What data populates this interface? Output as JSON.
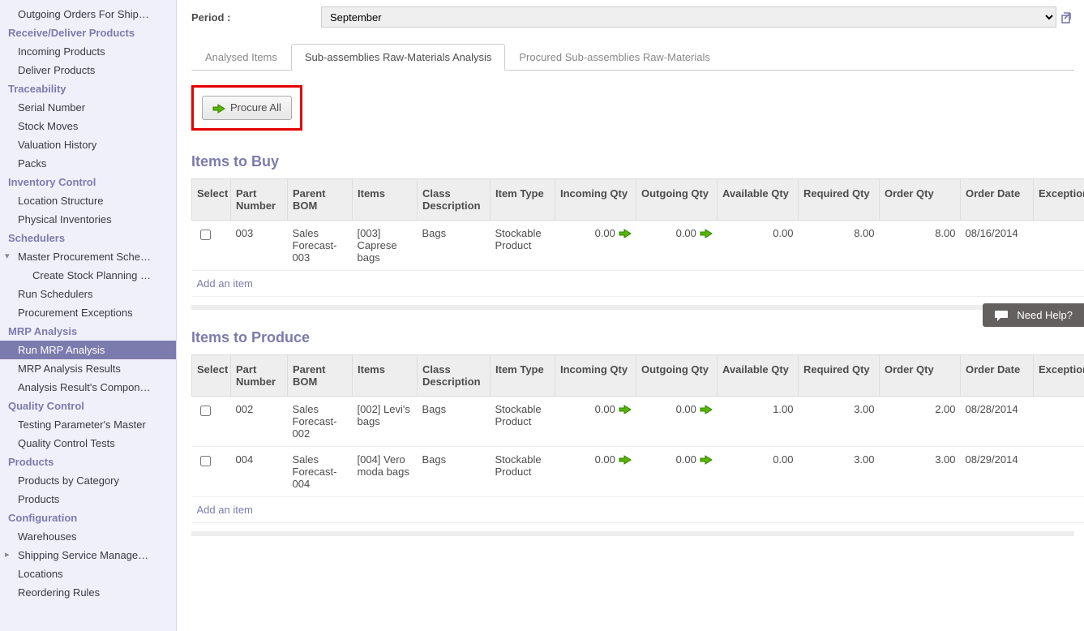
{
  "colors": {
    "accent": "#7c7bad",
    "highlight_border": "#e30000",
    "sidebar_bg": "#f0f0fa",
    "help_bg": "#646060",
    "arrow_fill": "#5ab700",
    "arrow_stroke": "#2e7d00"
  },
  "sidebar": {
    "items": [
      {
        "label": "Outgoing Orders For Ship…",
        "type": "item"
      },
      {
        "label": "Receive/Deliver Products",
        "type": "header"
      },
      {
        "label": "Incoming Products",
        "type": "item"
      },
      {
        "label": "Deliver Products",
        "type": "item"
      },
      {
        "label": "Traceability",
        "type": "header"
      },
      {
        "label": "Serial Number",
        "type": "item"
      },
      {
        "label": "Stock Moves",
        "type": "item"
      },
      {
        "label": "Valuation History",
        "type": "item"
      },
      {
        "label": "Packs",
        "type": "item"
      },
      {
        "label": "Inventory Control",
        "type": "header"
      },
      {
        "label": "Location Structure",
        "type": "item"
      },
      {
        "label": "Physical Inventories",
        "type": "item"
      },
      {
        "label": "Schedulers",
        "type": "header"
      },
      {
        "label": "Master Procurement Sche…",
        "type": "item",
        "expander": "collapsed"
      },
      {
        "label": "Create Stock Planning …",
        "type": "item",
        "indent": true
      },
      {
        "label": "Run Schedulers",
        "type": "item"
      },
      {
        "label": "Procurement Exceptions",
        "type": "item"
      },
      {
        "label": "MRP Analysis",
        "type": "header"
      },
      {
        "label": "Run MRP Analysis",
        "type": "item",
        "active": true
      },
      {
        "label": "MRP Analysis Results",
        "type": "item"
      },
      {
        "label": "Analysis Result's Compon…",
        "type": "item"
      },
      {
        "label": "Quality Control",
        "type": "header"
      },
      {
        "label": "Testing Parameter's Master",
        "type": "item"
      },
      {
        "label": "Quality Control Tests",
        "type": "item"
      },
      {
        "label": "Products",
        "type": "header"
      },
      {
        "label": "Products by Category",
        "type": "item"
      },
      {
        "label": "Products",
        "type": "item"
      },
      {
        "label": "Configuration",
        "type": "header"
      },
      {
        "label": "Warehouses",
        "type": "item"
      },
      {
        "label": "Shipping Service Manage…",
        "type": "item",
        "expander": "expandable"
      },
      {
        "label": "Locations",
        "type": "item"
      },
      {
        "label": "Reordering Rules",
        "type": "item"
      }
    ]
  },
  "form": {
    "period_label": "Period :",
    "period_value": "September"
  },
  "tabs": {
    "items": [
      {
        "label": "Analysed Items",
        "active": false
      },
      {
        "label": "Sub-assemblies Raw-Materials Analysis",
        "active": true
      },
      {
        "label": "Procured Sub-assemblies Raw-Materials",
        "active": false
      }
    ]
  },
  "actions": {
    "procure_all": "Procure All"
  },
  "help": {
    "label": "Need Help?"
  },
  "sections": [
    {
      "title": "Items to Buy",
      "columns": [
        "Select",
        "Part Number",
        "Parent BOM",
        "Items",
        "Class Description",
        "Item Type",
        "Incoming Qty",
        "Outgoing Qty",
        "Available Qty",
        "Required Qty",
        "Order Qty",
        "Order Date",
        "Exception"
      ],
      "rows": [
        {
          "part_number": "003",
          "parent_bom": "Sales Forecast-003",
          "items": "[003] Caprese bags",
          "class_desc": "Bags",
          "item_type": "Stockable Product",
          "incoming_qty": "0.00",
          "outgoing_qty": "0.00",
          "available_qty": "0.00",
          "required_qty": "8.00",
          "order_qty": "8.00",
          "order_date": "08/16/2014",
          "exception": ""
        }
      ],
      "add_item_label": "Add an item"
    },
    {
      "title": "Items to Produce",
      "columns": [
        "Select",
        "Part Number",
        "Parent BOM",
        "Items",
        "Class Description",
        "Item Type",
        "Incoming Qty",
        "Outgoing Qty",
        "Available Qty",
        "Required Qty",
        "Order Qty",
        "Order Date",
        "Exception"
      ],
      "rows": [
        {
          "part_number": "002",
          "parent_bom": "Sales Forecast-002",
          "items": "[002] Levi's bags",
          "class_desc": "Bags",
          "item_type": "Stockable Product",
          "incoming_qty": "0.00",
          "outgoing_qty": "0.00",
          "available_qty": "1.00",
          "required_qty": "3.00",
          "order_qty": "2.00",
          "order_date": "08/28/2014",
          "exception": ""
        },
        {
          "part_number": "004",
          "parent_bom": "Sales Forecast-004",
          "items": "[004] Vero moda bags",
          "class_desc": "Bags",
          "item_type": "Stockable Product",
          "incoming_qty": "0.00",
          "outgoing_qty": "0.00",
          "available_qty": "0.00",
          "required_qty": "3.00",
          "order_qty": "3.00",
          "order_date": "08/29/2014",
          "exception": ""
        }
      ],
      "add_item_label": "Add an item"
    }
  ]
}
